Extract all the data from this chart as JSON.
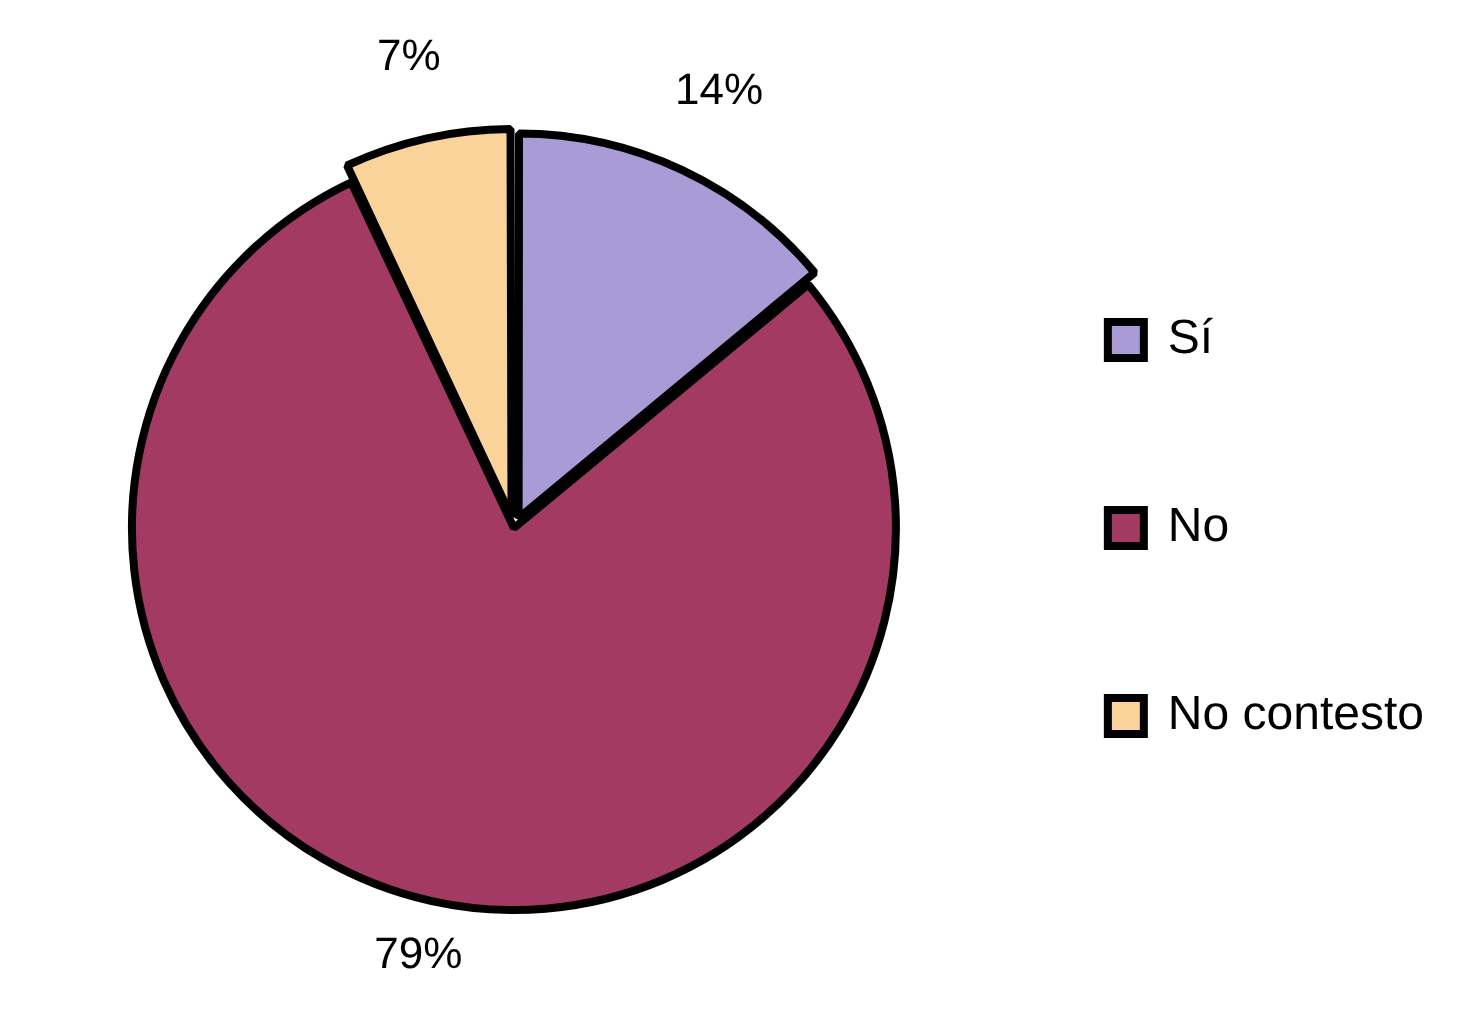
{
  "chart_data": {
    "type": "pie",
    "categories": [
      "Sí",
      "No",
      "No contesto"
    ],
    "values": [
      14,
      79,
      7
    ],
    "colors": [
      "#a99bd6",
      "#a33a62",
      "#f9d39a"
    ],
    "value_labels": [
      "14%",
      "79%",
      "7%"
    ],
    "legend": "right"
  }
}
